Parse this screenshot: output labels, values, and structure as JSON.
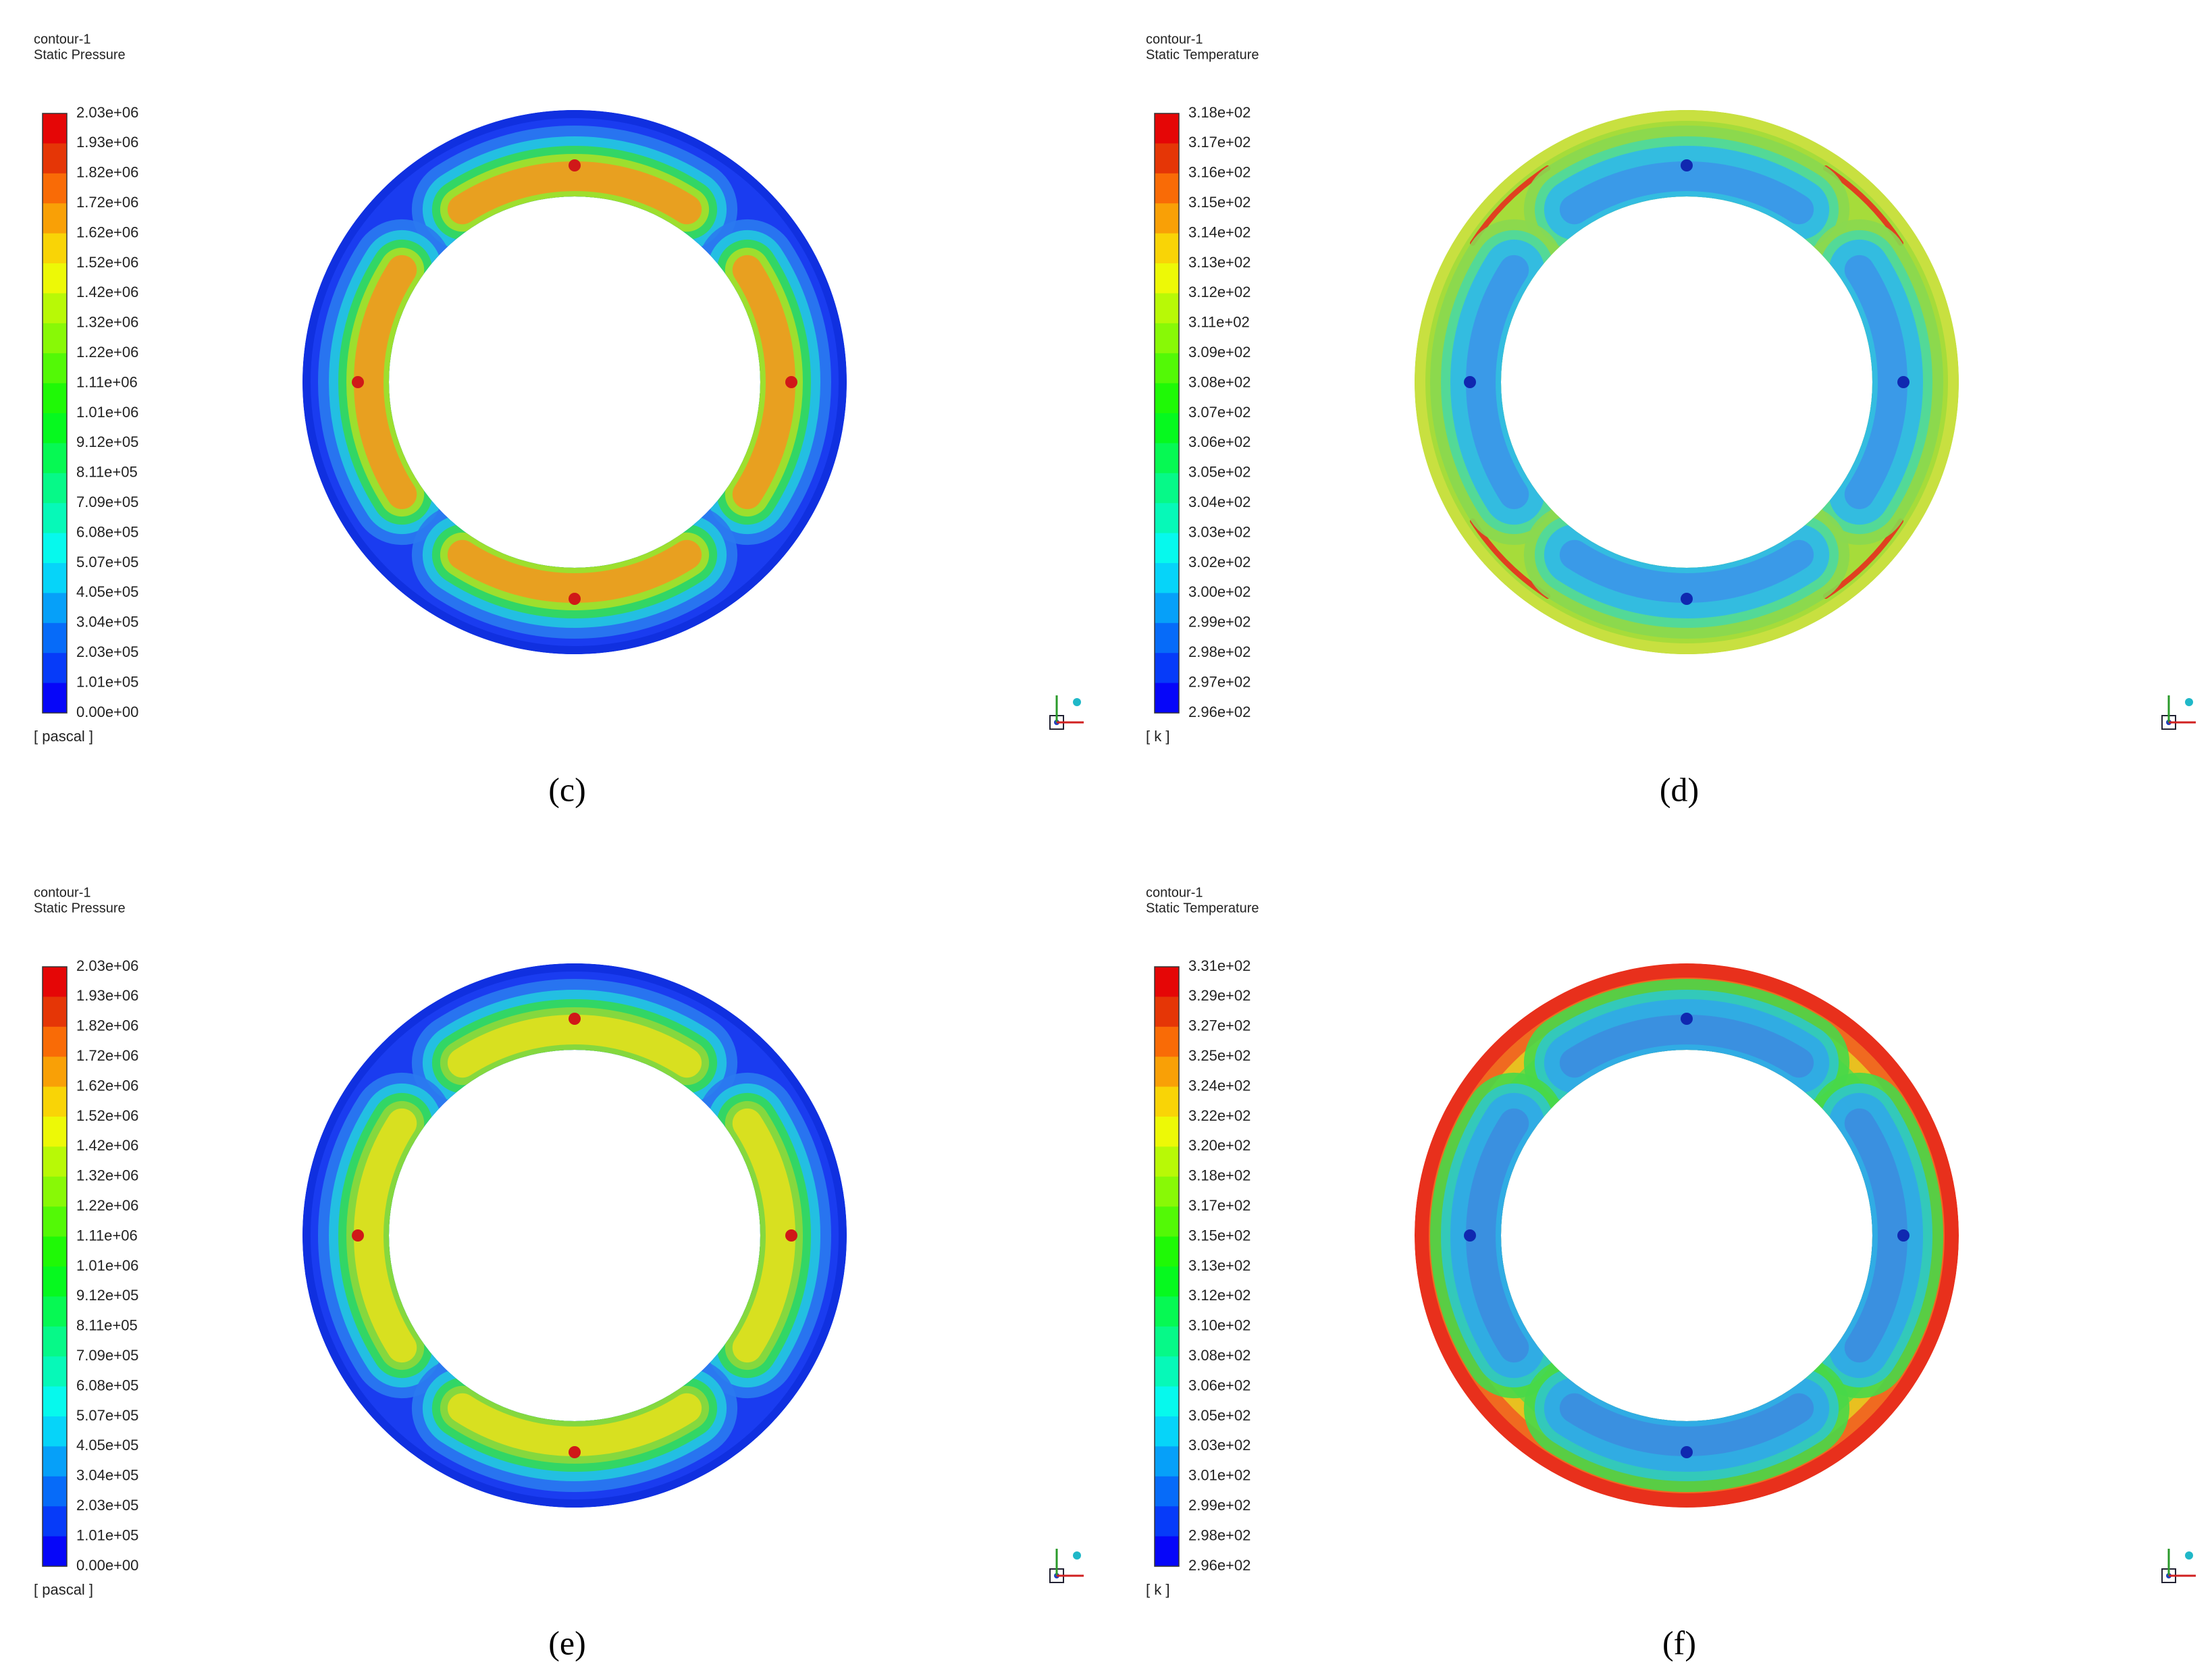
{
  "panels": [
    {
      "title": "contour-1",
      "variable": "Static Pressure",
      "legend": [
        "2.03e+06",
        "1.93e+06",
        "1.82e+06",
        "1.72e+06",
        "1.62e+06",
        "1.52e+06",
        "1.42e+06",
        "1.32e+06",
        "1.22e+06",
        "1.11e+06",
        "1.01e+06",
        "9.12e+05",
        "8.11e+05",
        "7.09e+05",
        "6.08e+05",
        "5.07e+05",
        "4.05e+05",
        "3.04e+05",
        "2.03e+05",
        "1.01e+05",
        "0.00e+00"
      ],
      "unit": "[ pascal ]",
      "caption": "(c)"
    },
    {
      "title": "contour-1",
      "variable": "Static Temperature",
      "legend": [
        "3.18e+02",
        "3.17e+02",
        "3.16e+02",
        "3.15e+02",
        "3.14e+02",
        "3.13e+02",
        "3.12e+02",
        "3.11e+02",
        "3.09e+02",
        "3.08e+02",
        "3.07e+02",
        "3.06e+02",
        "3.05e+02",
        "3.04e+02",
        "3.03e+02",
        "3.02e+02",
        "3.00e+02",
        "2.99e+02",
        "2.98e+02",
        "2.97e+02",
        "2.96e+02"
      ],
      "unit": "[ k ]",
      "caption": "(d)"
    },
    {
      "title": "contour-1",
      "variable": "Static Pressure",
      "legend": [
        "2.03e+06",
        "1.93e+06",
        "1.82e+06",
        "1.72e+06",
        "1.62e+06",
        "1.52e+06",
        "1.42e+06",
        "1.32e+06",
        "1.22e+06",
        "1.11e+06",
        "1.01e+06",
        "9.12e+05",
        "8.11e+05",
        "7.09e+05",
        "6.08e+05",
        "5.07e+05",
        "4.05e+05",
        "3.04e+05",
        "2.03e+05",
        "1.01e+05",
        "0.00e+00"
      ],
      "unit": "[ pascal ]",
      "caption": "(e)"
    },
    {
      "title": "contour-1",
      "variable": "Static Temperature",
      "legend": [
        "3.31e+02",
        "3.29e+02",
        "3.27e+02",
        "3.25e+02",
        "3.24e+02",
        "3.22e+02",
        "3.20e+02",
        "3.18e+02",
        "3.17e+02",
        "3.15e+02",
        "3.13e+02",
        "3.12e+02",
        "3.10e+02",
        "3.08e+02",
        "3.06e+02",
        "3.05e+02",
        "3.03e+02",
        "3.01e+02",
        "2.99e+02",
        "2.98e+02",
        "2.96e+02"
      ],
      "unit": "[ k ]",
      "caption": "(f)"
    }
  ]
}
